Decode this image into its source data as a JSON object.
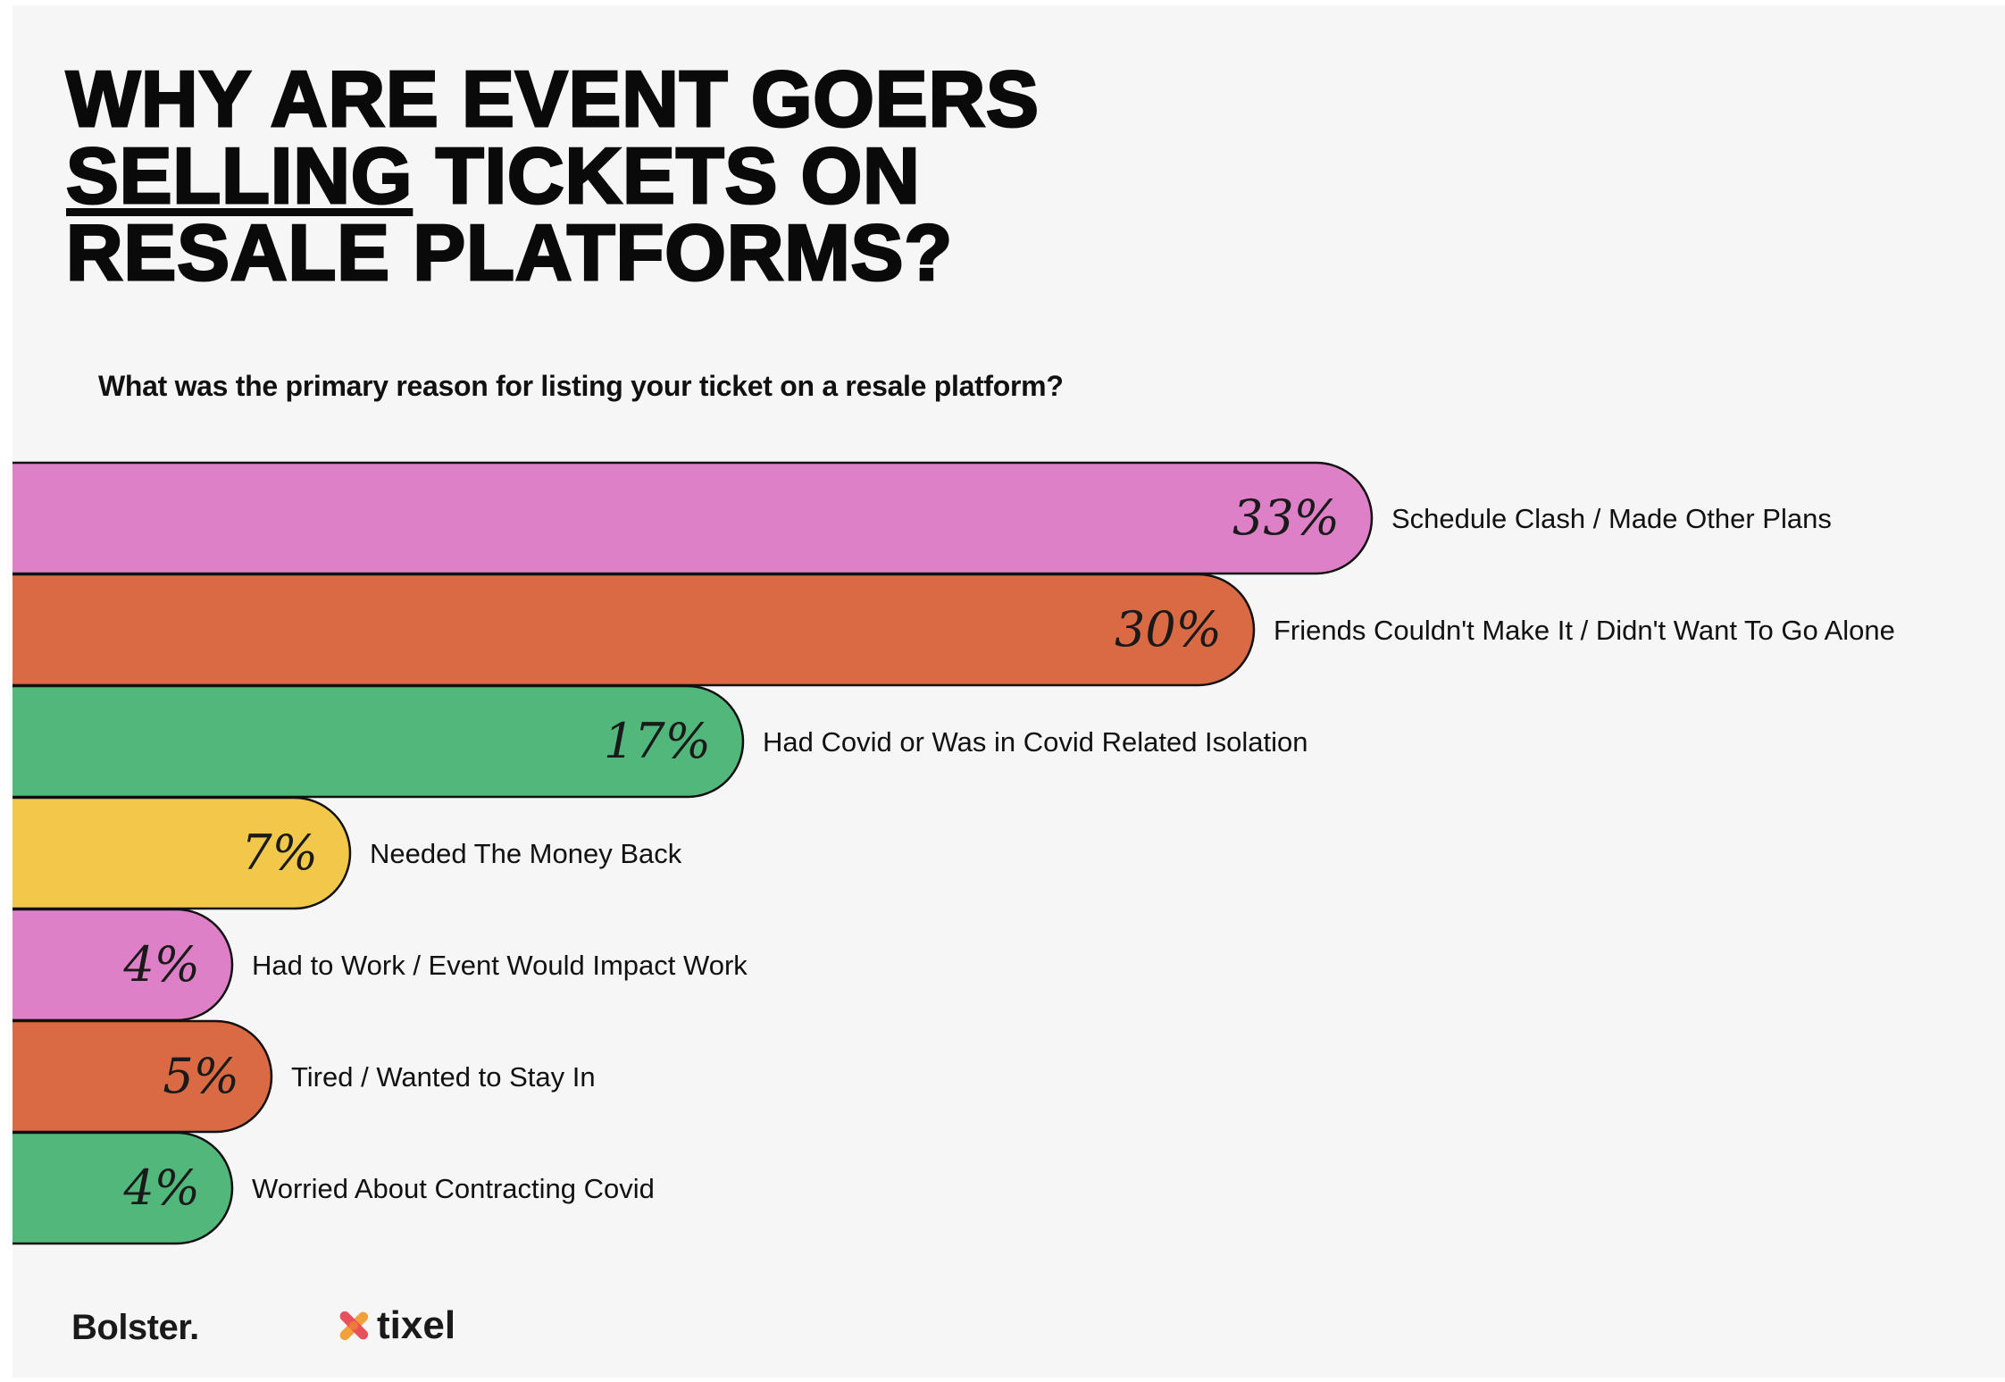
{
  "page": {
    "title_lines": [
      "WHY ARE EVENT GOERS",
      "TICKETS ON",
      "RESALE PLATFORMS?"
    ],
    "title_underlined_word": "SELLING",
    "subtitle": "What was the primary reason for listing your ticket on a resale platform?"
  },
  "colors": {
    "pink": "#dd80c7",
    "orange": "#d96a43",
    "green": "#52b77a",
    "yellow": "#f2c84a",
    "background": "#f6f6f6"
  },
  "chart_data": {
    "type": "bar",
    "orientation": "horizontal",
    "categories": [
      "Schedule Clash / Made Other Plans",
      "Friends Couldn't Make It / Didn't Want To Go Alone",
      "Had Covid or Was in Covid Related Isolation",
      "Needed The Money Back",
      "Had to Work / Event Would Impact Work",
      "Tired / Wanted to Stay In",
      "Worried About Contracting Covid"
    ],
    "values": [
      33,
      30,
      17,
      7,
      4,
      5,
      4
    ],
    "value_labels": [
      "33%",
      "30%",
      "17%",
      "7%",
      "4%",
      "5%",
      "4%"
    ],
    "bar_colors": [
      "#dd80c7",
      "#d96a43",
      "#52b77a",
      "#f2c84a",
      "#dd80c7",
      "#d96a43",
      "#52b77a"
    ],
    "unit": "%",
    "grid": false,
    "legend": "none",
    "bar_lengths_px_hint": "derived by script"
  },
  "footer": {
    "logo_left": "Bolster.",
    "logo_right": "tixel"
  }
}
